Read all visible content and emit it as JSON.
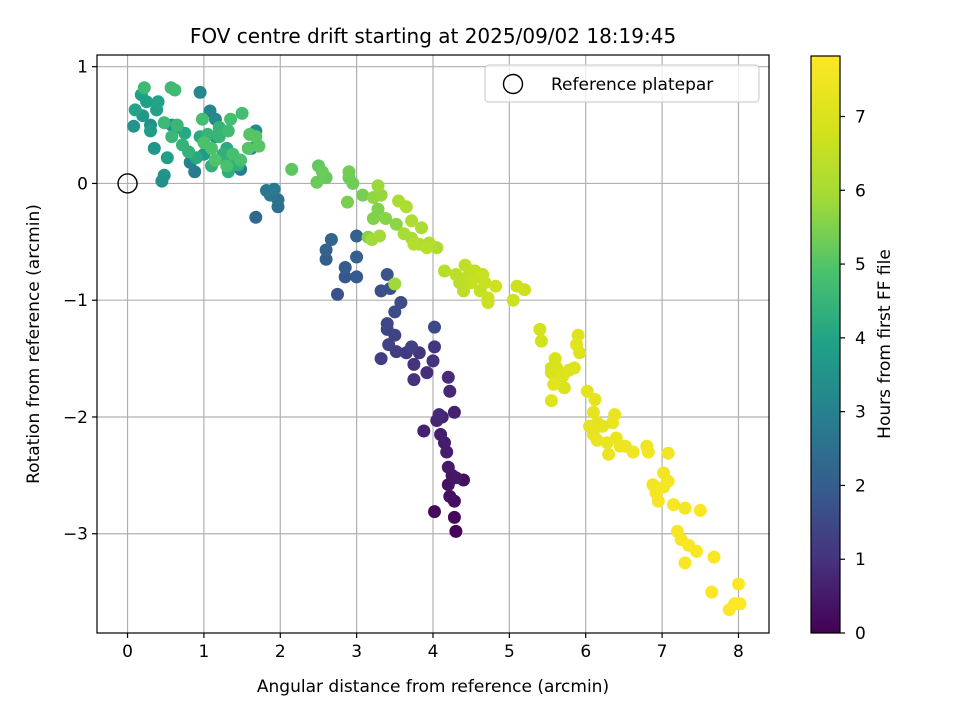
{
  "chart_data": {
    "type": "scatter",
    "title": "FOV centre drift starting at 2025/09/02 18:19:45",
    "xlabel": "Angular distance from reference (arcmin)",
    "ylabel": "Rotation from reference (arcmin)",
    "xlim": [
      -0.4,
      8.4
    ],
    "ylim": [
      -3.85,
      1.1
    ],
    "xticks": [
      0,
      1,
      2,
      3,
      4,
      5,
      6,
      7,
      8
    ],
    "xtick_labels": [
      "0",
      "1",
      "2",
      "3",
      "4",
      "5",
      "6",
      "7",
      "8"
    ],
    "yticks": [
      1,
      0,
      -1,
      -2,
      -3
    ],
    "ytick_labels": [
      "1",
      "0",
      "−1",
      "−2",
      "−3"
    ],
    "grid": true,
    "legend": {
      "label": "Reference platepar",
      "placement": "top-right"
    },
    "reference_point": {
      "x": 0,
      "y": 0
    },
    "colorbar": {
      "label": "Hours from first FF file",
      "range": [
        0,
        7.82
      ],
      "ticks": [
        0,
        1,
        2,
        3,
        4,
        5,
        6,
        7
      ],
      "tick_labels": [
        "0",
        "1",
        "2",
        "3",
        "4",
        "5",
        "6",
        "7"
      ],
      "colormap": "viridis"
    },
    "points": [
      [
        4.3,
        -2.98,
        0.1
      ],
      [
        4.28,
        -2.86,
        0.15
      ],
      [
        4.02,
        -2.81,
        0.2
      ],
      [
        4.28,
        -2.72,
        0.25
      ],
      [
        4.22,
        -2.68,
        0.3
      ],
      [
        4.4,
        -2.54,
        0.3
      ],
      [
        4.2,
        -2.58,
        0.35
      ],
      [
        4.25,
        -2.5,
        0.4
      ],
      [
        4.3,
        -2.52,
        0.45
      ],
      [
        4.2,
        -2.43,
        0.5
      ],
      [
        4.18,
        -2.3,
        0.55
      ],
      [
        4.15,
        -2.22,
        0.55
      ],
      [
        4.1,
        -2.15,
        0.6
      ],
      [
        3.88,
        -2.12,
        0.65
      ],
      [
        4.28,
        -1.96,
        0.65
      ],
      [
        4.12,
        -2.0,
        0.7
      ],
      [
        4.05,
        -2.03,
        0.75
      ],
      [
        4.08,
        -1.98,
        0.8
      ],
      [
        4.22,
        -1.78,
        0.8
      ],
      [
        4.2,
        -1.66,
        0.85
      ],
      [
        3.92,
        -1.62,
        0.9
      ],
      [
        3.75,
        -1.68,
        0.95
      ],
      [
        3.75,
        -1.55,
        1.0
      ],
      [
        4.0,
        -1.52,
        1.0
      ],
      [
        4.02,
        -1.4,
        1.05
      ],
      [
        3.82,
        -1.45,
        1.1
      ],
      [
        3.65,
        -1.45,
        1.15
      ],
      [
        3.52,
        -1.44,
        1.2
      ],
      [
        3.32,
        -1.5,
        1.25
      ],
      [
        3.72,
        -1.4,
        1.3
      ],
      [
        3.42,
        -1.38,
        1.35
      ],
      [
        3.5,
        -1.3,
        1.35
      ],
      [
        3.4,
        -1.25,
        1.4
      ],
      [
        3.4,
        -1.2,
        1.45
      ],
      [
        4.02,
        -1.23,
        1.5
      ],
      [
        3.5,
        -1.1,
        1.55
      ],
      [
        3.58,
        -1.02,
        1.6
      ],
      [
        3.32,
        -0.92,
        1.65
      ],
      [
        2.75,
        -0.95,
        1.7
      ],
      [
        3.44,
        -0.9,
        1.75
      ],
      [
        3.4,
        -0.78,
        1.8
      ],
      [
        2.85,
        -0.8,
        1.85
      ],
      [
        3.0,
        -0.8,
        1.9
      ],
      [
        2.85,
        -0.72,
        1.95
      ],
      [
        2.6,
        -0.65,
        2.0
      ],
      [
        3.0,
        -0.63,
        2.05
      ],
      [
        2.6,
        -0.57,
        2.1
      ],
      [
        3.0,
        -0.45,
        2.15
      ],
      [
        2.67,
        -0.48,
        2.2
      ],
      [
        1.68,
        -0.29,
        2.3
      ],
      [
        1.97,
        -0.2,
        2.45
      ],
      [
        1.97,
        -0.14,
        2.55
      ],
      [
        1.87,
        -0.1,
        2.65
      ],
      [
        1.82,
        -0.06,
        2.75
      ],
      [
        1.92,
        -0.05,
        2.8
      ],
      [
        0.88,
        0.1,
        2.85
      ],
      [
        1.48,
        0.12,
        2.9
      ],
      [
        0.82,
        0.18,
        3.0
      ],
      [
        1.3,
        0.18,
        3.05
      ],
      [
        1.62,
        0.3,
        3.1
      ],
      [
        1.08,
        0.62,
        3.15
      ],
      [
        0.95,
        0.78,
        3.2
      ],
      [
        1.15,
        0.55,
        3.25
      ],
      [
        1.68,
        0.45,
        3.3
      ],
      [
        0.58,
        0.5,
        3.35
      ],
      [
        0.3,
        0.5,
        3.4
      ],
      [
        0.45,
        0.02,
        3.45
      ],
      [
        0.48,
        0.07,
        3.5
      ],
      [
        0.08,
        0.49,
        3.55
      ],
      [
        0.35,
        0.3,
        3.6
      ],
      [
        0.2,
        0.58,
        3.65
      ],
      [
        1.15,
        0.4,
        3.7
      ],
      [
        1.0,
        0.25,
        3.75
      ],
      [
        0.3,
        0.45,
        3.8
      ],
      [
        0.52,
        0.22,
        3.85
      ],
      [
        0.18,
        0.76,
        3.9
      ],
      [
        0.25,
        0.7,
        3.9
      ],
      [
        0.38,
        0.63,
        3.95
      ],
      [
        0.4,
        0.7,
        4.0
      ],
      [
        0.1,
        0.63,
        4.0
      ],
      [
        0.65,
        0.48,
        4.05
      ],
      [
        0.75,
        0.43,
        4.1
      ],
      [
        0.9,
        0.22,
        4.15
      ],
      [
        0.95,
        0.4,
        4.15
      ],
      [
        1.3,
        0.3,
        4.2
      ],
      [
        1.4,
        0.22,
        4.25
      ],
      [
        1.45,
        0.16,
        4.3
      ],
      [
        1.32,
        0.1,
        4.3
      ],
      [
        1.1,
        0.15,
        4.35
      ],
      [
        1.25,
        0.25,
        4.35
      ],
      [
        0.72,
        0.33,
        4.4
      ],
      [
        0.8,
        0.27,
        4.4
      ],
      [
        1.2,
        0.48,
        4.45
      ],
      [
        1.2,
        0.4,
        4.5
      ],
      [
        1.05,
        0.42,
        4.5
      ],
      [
        0.58,
        0.4,
        4.55
      ],
      [
        0.65,
        0.5,
        4.55
      ],
      [
        0.22,
        0.82,
        4.6
      ],
      [
        0.48,
        0.52,
        4.6
      ],
      [
        0.57,
        0.82,
        4.65
      ],
      [
        0.62,
        0.8,
        4.7
      ],
      [
        1.32,
        0.45,
        4.7
      ],
      [
        1.5,
        0.6,
        4.75
      ],
      [
        0.98,
        0.55,
        4.75
      ],
      [
        1.35,
        0.55,
        4.8
      ],
      [
        1.38,
        0.25,
        4.8
      ],
      [
        1.48,
        0.2,
        4.85
      ],
      [
        1.3,
        0.15,
        4.85
      ],
      [
        1.1,
        0.3,
        4.9
      ],
      [
        1.0,
        0.35,
        4.9
      ],
      [
        1.15,
        0.2,
        4.95
      ],
      [
        1.6,
        0.42,
        5.0
      ],
      [
        1.58,
        0.3,
        5.0
      ],
      [
        1.68,
        0.4,
        5.05
      ],
      [
        1.72,
        0.32,
        5.05
      ],
      [
        2.15,
        0.12,
        5.1
      ],
      [
        2.5,
        0.15,
        5.15
      ],
      [
        2.6,
        0.05,
        5.2
      ],
      [
        2.55,
        0.1,
        5.25
      ],
      [
        2.48,
        0.01,
        5.25
      ],
      [
        2.9,
        0.05,
        5.3
      ],
      [
        2.95,
        0.0,
        5.3
      ],
      [
        2.9,
        0.1,
        5.35
      ],
      [
        3.08,
        -0.1,
        5.4
      ],
      [
        2.88,
        -0.16,
        5.45
      ],
      [
        3.22,
        -0.3,
        5.5
      ],
      [
        3.28,
        -0.22,
        5.5
      ],
      [
        3.15,
        -0.46,
        5.55
      ],
      [
        3.38,
        -0.3,
        5.6
      ],
      [
        3.52,
        -0.35,
        5.65
      ],
      [
        3.22,
        -0.12,
        5.7
      ],
      [
        3.32,
        -0.1,
        5.75
      ],
      [
        3.28,
        -0.02,
        5.8
      ],
      [
        3.5,
        -0.86,
        5.85
      ],
      [
        3.2,
        -0.48,
        5.9
      ],
      [
        3.3,
        -0.45,
        5.95
      ],
      [
        3.62,
        -0.43,
        6.0
      ],
      [
        3.72,
        -0.47,
        6.0
      ],
      [
        3.85,
        -0.38,
        6.05
      ],
      [
        3.55,
        -0.15,
        6.05
      ],
      [
        3.65,
        -0.2,
        6.1
      ],
      [
        3.72,
        -0.32,
        6.15
      ],
      [
        4.05,
        -0.55,
        6.15
      ],
      [
        3.95,
        -0.51,
        6.2
      ],
      [
        3.82,
        -0.52,
        6.2
      ],
      [
        3.75,
        -0.52,
        6.25
      ],
      [
        3.92,
        -0.55,
        6.3
      ],
      [
        4.15,
        -0.75,
        6.3
      ],
      [
        4.3,
        -0.78,
        6.35
      ],
      [
        4.35,
        -0.85,
        6.35
      ],
      [
        4.4,
        -0.92,
        6.4
      ],
      [
        4.45,
        -0.8,
        6.4
      ],
      [
        4.5,
        -0.75,
        6.45
      ],
      [
        4.42,
        -0.7,
        6.45
      ],
      [
        4.55,
        -0.75,
        6.5
      ],
      [
        4.6,
        -0.8,
        6.5
      ],
      [
        4.5,
        -0.85,
        6.55
      ],
      [
        4.62,
        -0.92,
        6.55
      ],
      [
        4.65,
        -0.78,
        6.6
      ],
      [
        4.68,
        -0.85,
        6.6
      ],
      [
        4.72,
        -0.98,
        6.65
      ],
      [
        4.72,
        -1.02,
        6.65
      ],
      [
        4.82,
        -0.88,
        6.7
      ],
      [
        5.05,
        -1.0,
        6.7
      ],
      [
        5.1,
        -0.88,
        6.75
      ],
      [
        5.2,
        -0.91,
        6.75
      ],
      [
        5.4,
        -1.25,
        6.8
      ],
      [
        5.42,
        -1.35,
        6.8
      ],
      [
        5.55,
        -1.58,
        6.85
      ],
      [
        5.6,
        -1.65,
        6.9
      ],
      [
        5.55,
        -1.62,
        6.9
      ],
      [
        5.6,
        -1.5,
        6.95
      ],
      [
        5.62,
        -1.58,
        6.95
      ],
      [
        5.7,
        -1.65,
        7.0
      ],
      [
        5.72,
        -1.75,
        7.0
      ],
      [
        5.78,
        -1.6,
        7.05
      ],
      [
        5.85,
        -1.58,
        7.05
      ],
      [
        5.92,
        -1.45,
        7.1
      ],
      [
        5.9,
        -1.3,
        7.1
      ],
      [
        5.88,
        -1.38,
        7.15
      ],
      [
        5.55,
        -1.86,
        7.15
      ],
      [
        5.58,
        -1.72,
        7.2
      ],
      [
        6.02,
        -1.78,
        7.2
      ],
      [
        6.12,
        -1.85,
        7.25
      ],
      [
        6.1,
        -1.96,
        7.25
      ],
      [
        6.05,
        -2.08,
        7.3
      ],
      [
        6.1,
        -2.15,
        7.3
      ],
      [
        6.15,
        -2.2,
        7.35
      ],
      [
        6.28,
        -2.22,
        7.35
      ],
      [
        6.35,
        -2.05,
        7.4
      ],
      [
        6.4,
        -2.18,
        7.4
      ],
      [
        6.45,
        -2.25,
        7.45
      ],
      [
        6.52,
        -2.25,
        7.45
      ],
      [
        6.62,
        -2.3,
        7.5
      ],
      [
        6.8,
        -2.25,
        7.5
      ],
      [
        6.82,
        -2.3,
        7.55
      ],
      [
        6.88,
        -2.58,
        7.55
      ],
      [
        6.92,
        -2.65,
        7.6
      ],
      [
        6.95,
        -2.72,
        7.6
      ],
      [
        7.02,
        -2.6,
        7.62
      ],
      [
        7.08,
        -2.55,
        7.64
      ],
      [
        7.15,
        -2.75,
        7.66
      ],
      [
        7.2,
        -2.98,
        7.68
      ],
      [
        7.25,
        -3.05,
        7.7
      ],
      [
        7.3,
        -3.25,
        7.72
      ],
      [
        7.35,
        -3.1,
        7.73
      ],
      [
        7.45,
        -3.15,
        7.74
      ],
      [
        7.5,
        -2.8,
        7.75
      ],
      [
        7.68,
        -3.2,
        7.76
      ],
      [
        7.65,
        -3.5,
        7.77
      ],
      [
        7.88,
        -3.65,
        7.78
      ],
      [
        7.95,
        -3.6,
        7.79
      ],
      [
        8.0,
        -3.43,
        7.8
      ],
      [
        8.02,
        -3.6,
        7.81
      ],
      [
        7.3,
        -2.78,
        7.6
      ],
      [
        7.02,
        -2.48,
        7.55
      ],
      [
        7.08,
        -2.31,
        7.5
      ],
      [
        6.15,
        -2.05,
        7.3
      ],
      [
        6.38,
        -1.98,
        7.35
      ],
      [
        6.3,
        -2.32,
        7.4
      ],
      [
        6.22,
        -2.08,
        7.25
      ]
    ]
  }
}
